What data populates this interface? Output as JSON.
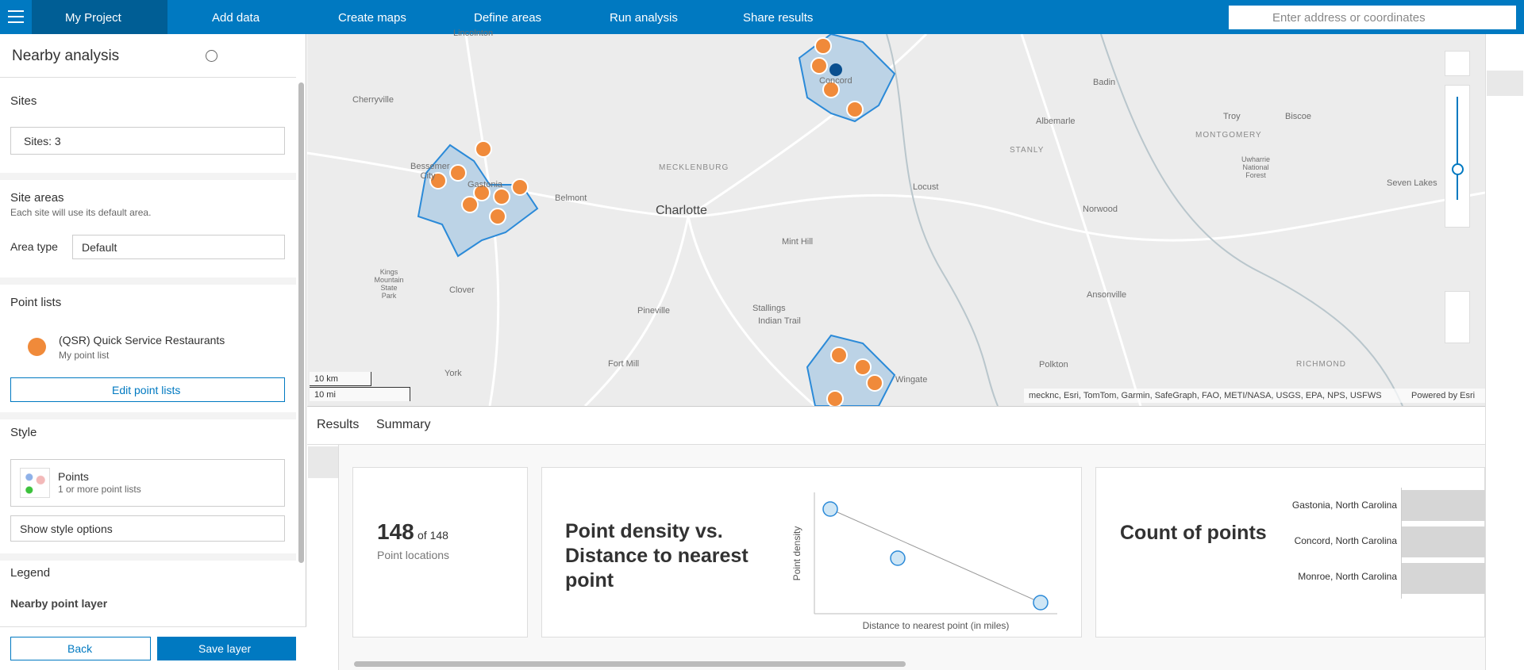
{
  "header": {
    "project": "My Project",
    "nav": [
      "Add data",
      "Create maps",
      "Define areas",
      "Run analysis",
      "Share results"
    ],
    "search_placeholder": "Enter address or coordinates"
  },
  "panel": {
    "title": "Nearby analysis",
    "sites": {
      "heading": "Sites",
      "button": "Sites: 3"
    },
    "site_areas": {
      "heading": "Site areas",
      "note": "Each site will use its default area.",
      "area_type_label": "Area type",
      "area_type_value": "Default"
    },
    "point_lists": {
      "heading": "Point lists",
      "item_title": "(QSR) Quick Service Restaurants",
      "item_subtitle": "My point list",
      "edit_button": "Edit point lists"
    },
    "style": {
      "heading": "Style",
      "option_title": "Points",
      "option_subtitle": "1 or more point lists",
      "show_options": "Show style options"
    },
    "legend": {
      "heading": "Legend",
      "layer": "Nearby point layer"
    },
    "back": "Back",
    "save": "Save layer"
  },
  "map": {
    "labels": [
      "Lincolnton",
      "Cherryville",
      "Bessemer City",
      "Gastonia",
      "Belmont",
      "MECKLENBURG",
      "Charlotte",
      "Concord",
      "Badin",
      "Albemarle",
      "Troy",
      "Biscoe",
      "MONTGOMERY",
      "STANLY",
      "Uwharrie National Forest",
      "Locust",
      "Norwood",
      "Seven Lakes",
      "Mint Hill",
      "Kings Mountain State Park",
      "Clover",
      "Pineville",
      "Stallings",
      "Indian Trail",
      "Ansonville",
      "Fort Mill",
      "York",
      "Polkton",
      "RICHMOND",
      "Wingate"
    ],
    "scale": [
      "10 km",
      "10 mi"
    ],
    "attribution": "mecknc, Esri, TomTom, Garmin, SafeGraph, FAO, METI/NASA, USGS, EPA, NPS, USFWS",
    "powered": "Powered by Esri"
  },
  "results": {
    "breadcrumb": [
      "Results",
      "Summary"
    ],
    "cards": [
      {
        "value": "148",
        "of": "of 148",
        "label": "Point locations"
      },
      {
        "title": "Point density vs. Distance to nearest point",
        "y_axis": "Point density",
        "x_axis": "Distance to nearest point (in miles)"
      },
      {
        "title": "Count of points",
        "categories": [
          "Gastonia, North Carolina",
          "Concord, North Carolina",
          "Monroe, North Carolina"
        ]
      }
    ]
  }
}
